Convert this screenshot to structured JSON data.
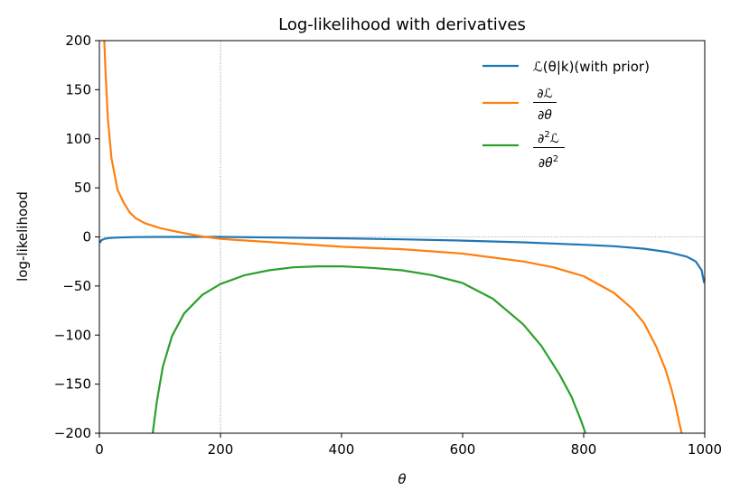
{
  "chart_data": {
    "type": "line",
    "title": "Log-likelihood with derivatives",
    "xlabel": "θ",
    "ylabel": "log-likelihood",
    "xlim": [
      0,
      1000
    ],
    "ylim": [
      -200,
      200
    ],
    "xticks": [
      "0",
      "200",
      "400",
      "600",
      "800",
      "1000"
    ],
    "yticks": [
      "200",
      "150",
      "100",
      "50",
      "0",
      "−50",
      "−100",
      "−150",
      "−200"
    ],
    "reference_lines": {
      "vertical_x": 200,
      "horizontal_y": 0,
      "style": "dotted"
    },
    "grid": false,
    "legend_position": "top-right",
    "series": [
      {
        "name": "ℒ(θ|k)(with prior)",
        "color": "#1f77b4",
        "x": [
          1,
          3,
          8,
          15,
          30,
          60,
          100,
          150,
          200,
          300,
          400,
          500,
          600,
          700,
          800,
          850,
          900,
          940,
          970,
          985,
          995,
          999
        ],
        "y": [
          -6,
          -3.5,
          -2,
          -1.2,
          -0.6,
          -0.2,
          0,
          0,
          0,
          -0.6,
          -1.5,
          -2.5,
          -3.8,
          -5.5,
          -8,
          -9.5,
          -12,
          -15.5,
          -20,
          -25,
          -34,
          -47
        ]
      },
      {
        "name": "∂ℒ/∂θ",
        "color": "#ff7f0e",
        "x": [
          8,
          10,
          14,
          20,
          30,
          40,
          50,
          60,
          75,
          100,
          130,
          170,
          200,
          300,
          400,
          500,
          600,
          700,
          750,
          800,
          850,
          880,
          900,
          920,
          935,
          945,
          952,
          958,
          962
        ],
        "y": [
          200,
          170,
          120,
          80,
          48,
          35,
          25,
          19,
          14,
          9,
          5,
          0.5,
          -2,
          -6,
          -10,
          -12.5,
          -17,
          -25,
          -31,
          -40,
          -57,
          -73,
          -88,
          -112,
          -135,
          -155,
          -172,
          -190,
          -200
        ]
      },
      {
        "name": "∂²ℒ/∂θ²",
        "color": "#2ca02c",
        "x": [
          88,
          95,
          105,
          120,
          140,
          170,
          200,
          240,
          280,
          320,
          360,
          400,
          450,
          500,
          550,
          600,
          650,
          700,
          730,
          760,
          780,
          795,
          803
        ],
        "y": [
          -200,
          -167,
          -132,
          -101,
          -78,
          -59,
          -48,
          -39,
          -34,
          -31,
          -30,
          -30,
          -31.5,
          -34,
          -39,
          -47,
          -63,
          -89,
          -111,
          -140,
          -163,
          -186,
          -200
        ]
      }
    ]
  }
}
